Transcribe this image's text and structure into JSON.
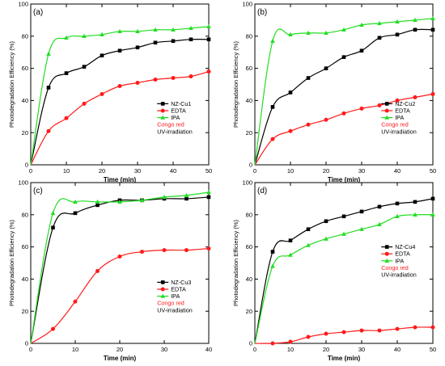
{
  "chart_data": [
    {
      "type": "line",
      "panel_label": "(a)",
      "xlabel": "Time (min)",
      "ylabel": "Photodegradation Efficiency (%)",
      "xlim": [
        0,
        50
      ],
      "ylim": [
        0,
        100
      ],
      "xticks": [
        0,
        10,
        20,
        30,
        40,
        50
      ],
      "yticks": [
        0,
        20,
        40,
        60,
        80,
        100
      ],
      "legend_position": "bottom-right",
      "legend_notes": [
        "Congo red",
        "UV-irradiation"
      ],
      "series": [
        {
          "name": "NZ-Cu1",
          "color": "#000000",
          "marker": "square",
          "x": [
            0,
            5,
            10,
            15,
            20,
            25,
            30,
            35,
            40,
            45,
            50
          ],
          "y": [
            0,
            48,
            57,
            61,
            68,
            71,
            73,
            76,
            77,
            78,
            78
          ]
        },
        {
          "name": "EDTA",
          "color": "#ff1a1a",
          "marker": "circle",
          "x": [
            0,
            5,
            10,
            15,
            20,
            25,
            30,
            35,
            40,
            45,
            50
          ],
          "y": [
            0,
            21,
            29,
            38,
            44,
            49,
            51,
            53,
            54,
            55,
            58
          ]
        },
        {
          "name": "IPA",
          "color": "#22dd22",
          "marker": "triangle",
          "x": [
            0,
            5,
            10,
            15,
            20,
            25,
            30,
            35,
            40,
            45,
            50
          ],
          "y": [
            0,
            69,
            79,
            80,
            81,
            83,
            83,
            84,
            84,
            85,
            86
          ]
        }
      ]
    },
    {
      "type": "line",
      "panel_label": "(b)",
      "xlabel": "Time (min)",
      "ylabel": "Photodegradation Efficiency (%)",
      "xlim": [
        0,
        50
      ],
      "ylim": [
        0,
        100
      ],
      "xticks": [
        0,
        10,
        20,
        30,
        40,
        50
      ],
      "yticks": [
        0,
        20,
        40,
        60,
        80,
        100
      ],
      "legend_position": "bottom-right",
      "legend_notes": [
        "Congo red",
        "UV-irradiation"
      ],
      "series": [
        {
          "name": "NZ-Cu2",
          "color": "#000000",
          "marker": "square",
          "x": [
            0,
            5,
            10,
            15,
            20,
            25,
            30,
            35,
            40,
            45,
            50
          ],
          "y": [
            0,
            36,
            45,
            54,
            60,
            67,
            71,
            79,
            81,
            84,
            84
          ]
        },
        {
          "name": "EDTA",
          "color": "#ff1a1a",
          "marker": "circle",
          "x": [
            0,
            5,
            10,
            15,
            20,
            25,
            30,
            35,
            40,
            45,
            50
          ],
          "y": [
            0,
            16,
            21,
            25,
            28,
            32,
            35,
            37,
            40,
            42,
            44
          ]
        },
        {
          "name": "IPA",
          "color": "#22dd22",
          "marker": "triangle",
          "x": [
            0,
            5,
            10,
            15,
            20,
            25,
            30,
            35,
            40,
            45,
            50
          ],
          "y": [
            0,
            77,
            81,
            82,
            82,
            84,
            87,
            88,
            89,
            90,
            91
          ]
        }
      ]
    },
    {
      "type": "line",
      "panel_label": "(c)",
      "xlabel": "Time (min)",
      "ylabel": "Photodegradation Efficiency (%)",
      "xlim": [
        0,
        40
      ],
      "ylim": [
        0,
        100
      ],
      "xticks": [
        0,
        10,
        20,
        30,
        40
      ],
      "yticks": [
        0,
        20,
        40,
        60,
        80,
        100
      ],
      "legend_position": "bottom-right",
      "legend_notes": [
        "Congo red",
        "UV-irradiation"
      ],
      "series": [
        {
          "name": "NZ-Cu3",
          "color": "#000000",
          "marker": "square",
          "x": [
            0,
            5,
            10,
            15,
            20,
            25,
            30,
            35,
            40
          ],
          "y": [
            0,
            72,
            81,
            86,
            89,
            89,
            90,
            90,
            91
          ]
        },
        {
          "name": "EDTA",
          "color": "#ff1a1a",
          "marker": "circle",
          "x": [
            0,
            5,
            10,
            15,
            20,
            25,
            30,
            35,
            40
          ],
          "y": [
            0,
            9,
            26,
            45,
            54,
            57,
            58,
            58,
            59
          ]
        },
        {
          "name": "IPA",
          "color": "#22dd22",
          "marker": "triangle",
          "x": [
            0,
            5,
            10,
            15,
            20,
            25,
            30,
            35,
            40
          ],
          "y": [
            0,
            81,
            88,
            88,
            88,
            89,
            91,
            92,
            94
          ]
        }
      ]
    },
    {
      "type": "line",
      "panel_label": "(d)",
      "xlabel": "Time (min)",
      "ylabel": "Photodegradation Efficiency (%)",
      "xlim": [
        0,
        50
      ],
      "ylim": [
        0,
        100
      ],
      "xticks": [
        0,
        10,
        20,
        30,
        40,
        50
      ],
      "yticks": [
        0,
        20,
        40,
        60,
        80,
        100
      ],
      "legend_position": "center-right",
      "legend_notes": [
        "Congo red",
        "UV-irradiation"
      ],
      "series": [
        {
          "name": "NZ-Cu4",
          "color": "#000000",
          "marker": "square",
          "x": [
            0,
            5,
            10,
            15,
            20,
            25,
            30,
            35,
            40,
            45,
            50
          ],
          "y": [
            0,
            57,
            64,
            71,
            76,
            79,
            82,
            85,
            87,
            88,
            90
          ]
        },
        {
          "name": "EDTA",
          "color": "#ff1a1a",
          "marker": "circle",
          "x": [
            0,
            5,
            10,
            15,
            20,
            25,
            30,
            35,
            40,
            45,
            50
          ],
          "y": [
            0,
            0,
            1,
            4,
            6,
            7,
            8,
            8,
            9,
            10,
            10
          ]
        },
        {
          "name": "IPA",
          "color": "#22dd22",
          "marker": "triangle",
          "x": [
            0,
            5,
            10,
            15,
            20,
            25,
            30,
            35,
            40,
            45,
            50
          ],
          "y": [
            0,
            48,
            55,
            61,
            65,
            68,
            71,
            74,
            79,
            80,
            80
          ]
        }
      ]
    }
  ]
}
